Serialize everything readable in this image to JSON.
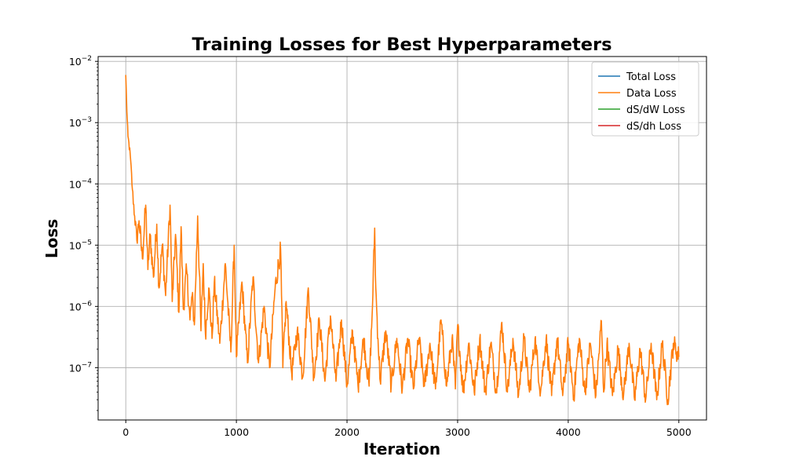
{
  "chart_data": {
    "type": "line",
    "title": "Training Losses for Best Hyperparameters",
    "xlabel": "Iteration",
    "ylabel": "Loss",
    "xlim": [
      -250,
      5250
    ],
    "ylim": [
      1.4e-08,
      0.012
    ],
    "yscale": "log",
    "grid": true,
    "legend_position": "top-right",
    "x_ticks": [
      {
        "value": 0,
        "label": "0"
      },
      {
        "value": 1000,
        "label": "1000"
      },
      {
        "value": 2000,
        "label": "2000"
      },
      {
        "value": 3000,
        "label": "3000"
      },
      {
        "value": 4000,
        "label": "4000"
      },
      {
        "value": 5000,
        "label": "5000"
      }
    ],
    "y_ticks": [
      {
        "value": 1e-07,
        "base": "10",
        "exp": "−7"
      },
      {
        "value": 1e-06,
        "base": "10",
        "exp": "−6"
      },
      {
        "value": 1e-05,
        "base": "10",
        "exp": "−5"
      },
      {
        "value": 0.0001,
        "base": "10",
        "exp": "−4"
      },
      {
        "value": 0.001,
        "base": "10",
        "exp": "−3"
      },
      {
        "value": 0.01,
        "base": "10",
        "exp": "−2"
      }
    ],
    "series": [
      {
        "name": "Total Loss",
        "color": "#1f77b4",
        "x": [],
        "y": []
      },
      {
        "name": "Data Loss",
        "color": "#ff7f0e",
        "x": [
          0,
          10,
          20,
          40,
          60,
          80,
          100,
          120,
          150,
          180,
          200,
          220,
          250,
          280,
          300,
          330,
          360,
          400,
          420,
          450,
          480,
          500,
          520,
          550,
          580,
          600,
          620,
          650,
          680,
          700,
          720,
          750,
          780,
          800,
          850,
          900,
          950,
          980,
          1000,
          1050,
          1100,
          1150,
          1200,
          1250,
          1300,
          1350,
          1400,
          1420,
          1450,
          1500,
          1550,
          1600,
          1650,
          1700,
          1750,
          1800,
          1850,
          1900,
          1950,
          2000,
          2050,
          2100,
          2150,
          2200,
          2230,
          2250,
          2260,
          2280,
          2300,
          2350,
          2400,
          2450,
          2500,
          2550,
          2600,
          2650,
          2700,
          2750,
          2800,
          2850,
          2900,
          2950,
          2980,
          3000,
          3050,
          3100,
          3150,
          3200,
          3250,
          3300,
          3350,
          3400,
          3450,
          3500,
          3550,
          3600,
          3650,
          3700,
          3750,
          3800,
          3850,
          3900,
          3950,
          4000,
          4050,
          4100,
          4150,
          4200,
          4250,
          4300,
          4320,
          4350,
          4400,
          4450,
          4500,
          4550,
          4600,
          4650,
          4700,
          4750,
          4800,
          4850,
          4900,
          4950,
          5000
        ],
        "y": [
          0.006,
          0.0015,
          0.0006,
          0.0003,
          8e-05,
          3e-05,
          1.2e-05,
          2.5e-05,
          6e-06,
          4.5e-05,
          4e-06,
          1.5e-05,
          3e-06,
          2.2e-05,
          2e-06,
          1e-05,
          1.5e-06,
          4.5e-05,
          1.2e-06,
          1.5e-05,
          8e-07,
          2e-05,
          9e-07,
          4e-06,
          6e-07,
          1.5e-06,
          5e-07,
          3e-05,
          4e-07,
          5e-06,
          3.5e-07,
          2e-06,
          3e-07,
          2.5e-06,
          2.5e-07,
          5e-06,
          1.8e-07,
          1e-05,
          1.5e-07,
          2.5e-06,
          1.2e-07,
          3e-06,
          1.2e-07,
          1e-06,
          1e-07,
          2e-06,
          8.5e-06,
          1e-07,
          1.2e-06,
          8e-08,
          4e-07,
          7e-08,
          2e-06,
          7e-08,
          6e-07,
          6e-08,
          7e-07,
          6e-08,
          6e-07,
          5e-08,
          4e-07,
          5e-08,
          3e-07,
          5e-08,
          1e-06,
          1.9e-05,
          2e-06,
          3e-07,
          6e-08,
          4e-07,
          5e-08,
          3e-07,
          4.5e-08,
          3e-07,
          4.5e-08,
          3e-07,
          5e-08,
          2.5e-07,
          4.5e-08,
          6e-07,
          5e-08,
          3e-07,
          4.5e-08,
          5e-07,
          4e-08,
          2.5e-07,
          4e-08,
          3e-07,
          4e-08,
          2.5e-07,
          4e-08,
          5.5e-07,
          4e-08,
          3e-07,
          3.5e-08,
          3e-07,
          4e-08,
          3e-07,
          4e-08,
          3e-07,
          3.5e-08,
          3e-07,
          3.5e-08,
          2.5e-07,
          3.5e-08,
          3e-07,
          4e-08,
          2.5e-07,
          3.5e-08,
          5.8e-07,
          4e-08,
          2.5e-07,
          3.5e-08,
          2e-07,
          3.5e-08,
          2.5e-07,
          3e-08,
          2e-07,
          3e-08,
          2.5e-07,
          3e-08,
          2.5e-07,
          3e-08,
          2.5e-07,
          1.5e-07
        ]
      },
      {
        "name": "dS/dW Loss",
        "color": "#2ca02c",
        "x": [],
        "y": []
      },
      {
        "name": "dS/dh Loss",
        "color": "#d62728",
        "x": [],
        "y": []
      }
    ]
  }
}
